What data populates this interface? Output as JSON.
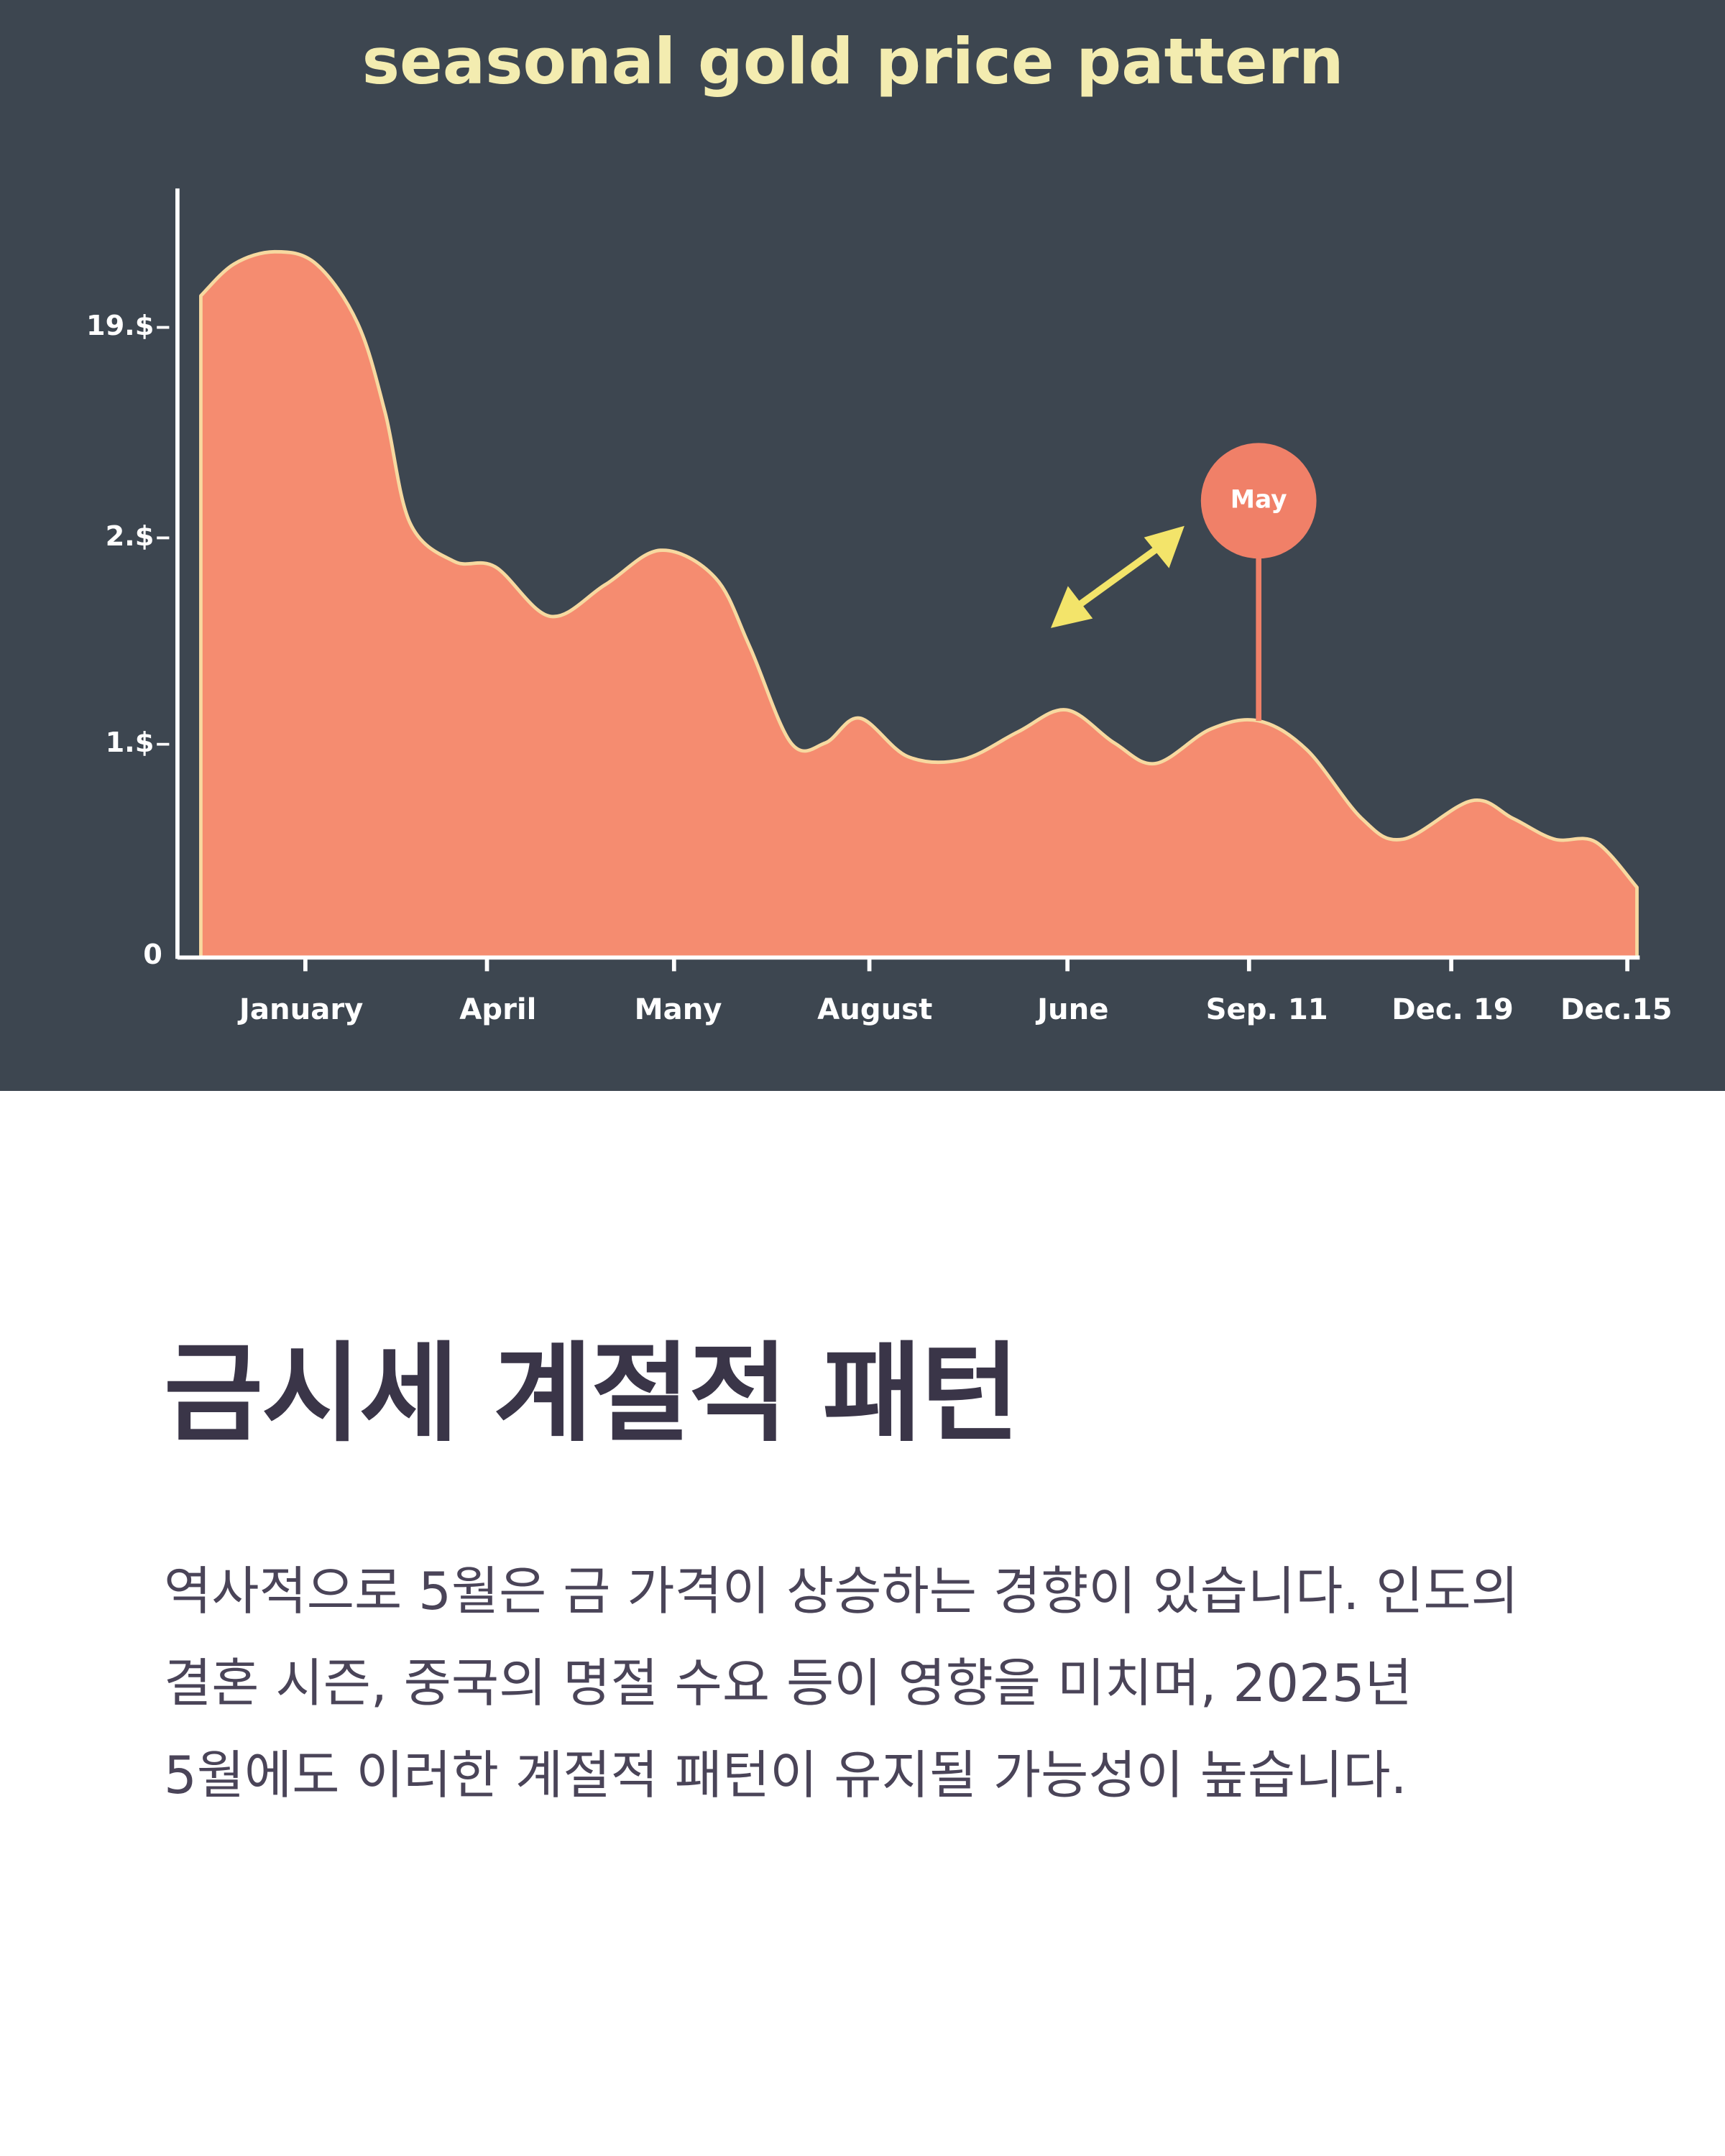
{
  "chart_image": {
    "title": "seasonal gold price pattern",
    "y_labels": [
      "19.$",
      "2.$",
      "1.$",
      "0"
    ],
    "x_labels": [
      "January",
      "April",
      "Many",
      "August",
      "June",
      "Sep. 11",
      "Dec. 19",
      "Dec.15"
    ],
    "marker_label": "May"
  },
  "article": {
    "heading": "금시세 계절적 패턴",
    "paragraph": "역사적으로 5월은 금 가격이 상승하는 경향이 있습니다. 인도의 결혼 시즌, 중국의 명절 수요 등이 영향을 미치며, 2025년 5월에도 이러한 계절적 패턴이 유지될 가능성이 높습니다."
  }
}
